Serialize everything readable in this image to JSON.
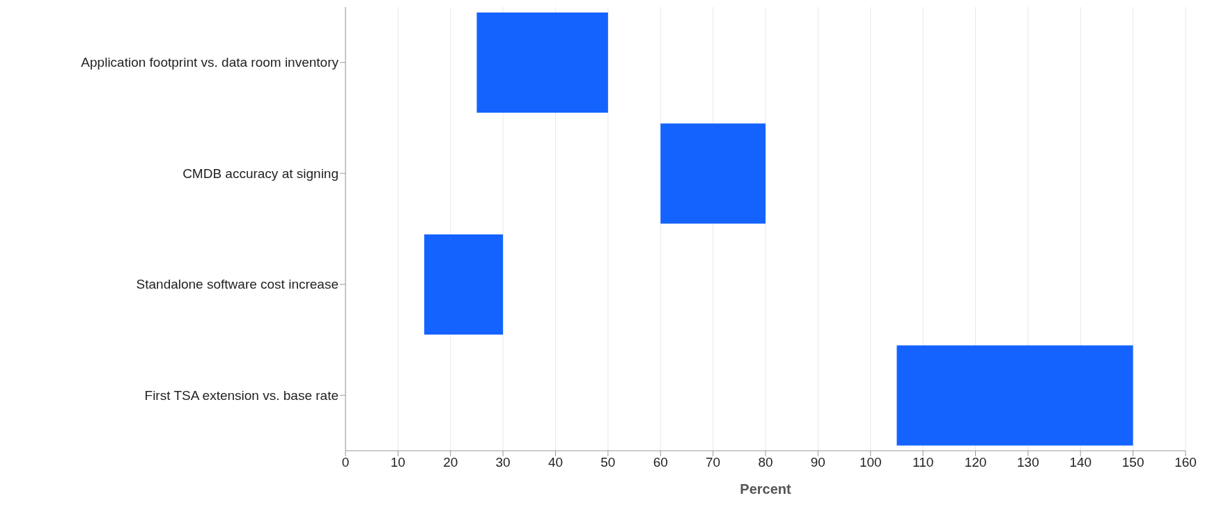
{
  "chart_data": {
    "type": "bar",
    "orientation": "horizontal",
    "xlabel": "Percent",
    "categories": [
      "Application footprint vs. data room inventory",
      "CMDB accuracy at signing",
      "Standalone software cost increase",
      "First TSA extension vs. base rate"
    ],
    "base": [
      25,
      60,
      15,
      105
    ],
    "values": [
      25,
      20,
      15,
      45
    ],
    "color": "#1463ff",
    "xlim": [
      0,
      160
    ],
    "xticks": [
      0,
      10,
      20,
      30,
      40,
      50,
      60,
      70,
      80,
      90,
      100,
      110,
      120,
      130,
      140,
      150,
      160
    ],
    "grid": "x",
    "legend": false
  }
}
